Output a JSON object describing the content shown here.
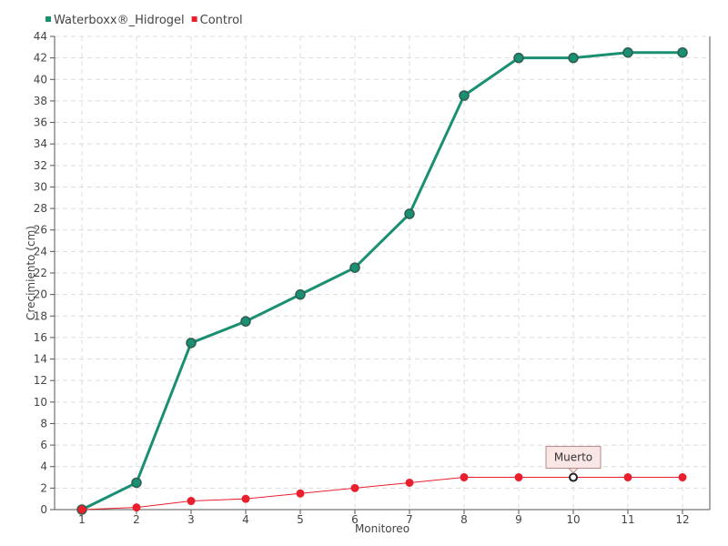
{
  "chart_data": {
    "type": "line",
    "title": "",
    "xlabel": "Monitoreo",
    "ylabel": "Crecimiento (cm)",
    "categories": [
      "1",
      "2",
      "3",
      "4",
      "5",
      "6",
      "7",
      "8",
      "9",
      "10",
      "11",
      "12"
    ],
    "ylim": [
      0,
      44
    ],
    "ytick_step": 2,
    "grid": true,
    "legend_position": "top-left",
    "series": [
      {
        "name": "Waterboxx®_Hidrogel",
        "color": "#1a8f72",
        "values": [
          0,
          2.5,
          15.5,
          17.5,
          20,
          22.5,
          27.5,
          38.5,
          42,
          42,
          42.5,
          42.5
        ]
      },
      {
        "name": "Control",
        "color": "#e8202e",
        "values": [
          0,
          0.2,
          0.8,
          1,
          1.5,
          2,
          2.5,
          3,
          3,
          3,
          3,
          3
        ]
      }
    ],
    "annotation": {
      "text": "Muerto",
      "series_index": 1,
      "category": "10",
      "value": 3
    }
  }
}
